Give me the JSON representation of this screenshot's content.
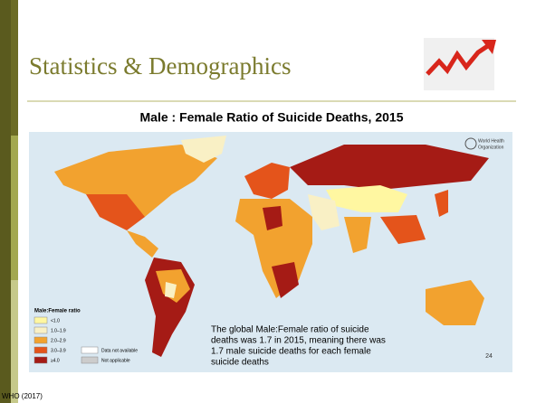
{
  "header": {
    "title": "Statistics & Demographics"
  },
  "map": {
    "title": "Male : Female Ratio of Suicide Deaths, 2015",
    "organization": [
      "World Health",
      "Organization"
    ],
    "legend": {
      "title": "Male:Female ratio",
      "items": [
        "<1.0",
        "1.0–1.9",
        "2.0–2.9",
        "3.0–3.9",
        "≥4.0"
      ],
      "other": [
        "Data not available",
        "Not applicable"
      ]
    },
    "annotation": [
      "The global Male:Female ratio of suicide",
      "deaths was 1.7 in 2015, meaning there was",
      "1.7 male suicide deaths for each female",
      "suicide deaths"
    ]
  },
  "footer": {
    "page": "24",
    "source": "WHO (2017)"
  }
}
